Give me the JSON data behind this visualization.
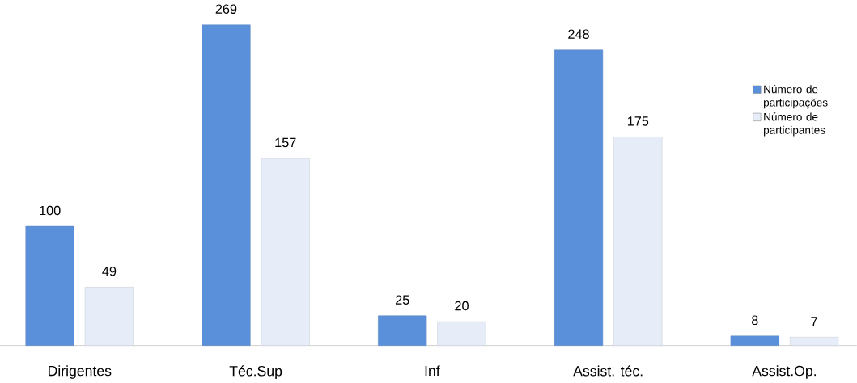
{
  "chart_data": {
    "type": "bar",
    "categories": [
      "Dirigentes",
      "Téc.Sup",
      "Inf",
      "Assist. téc.",
      "Assist.Op."
    ],
    "series": [
      {
        "name": "Número de participações",
        "color": "#5a8fd9",
        "values": [
          100,
          269,
          25,
          248,
          8
        ]
      },
      {
        "name": "Número de participantes",
        "color": "#e6edf8",
        "values": [
          49,
          157,
          20,
          175,
          7
        ]
      }
    ],
    "data_labels": true,
    "legend": "right"
  }
}
